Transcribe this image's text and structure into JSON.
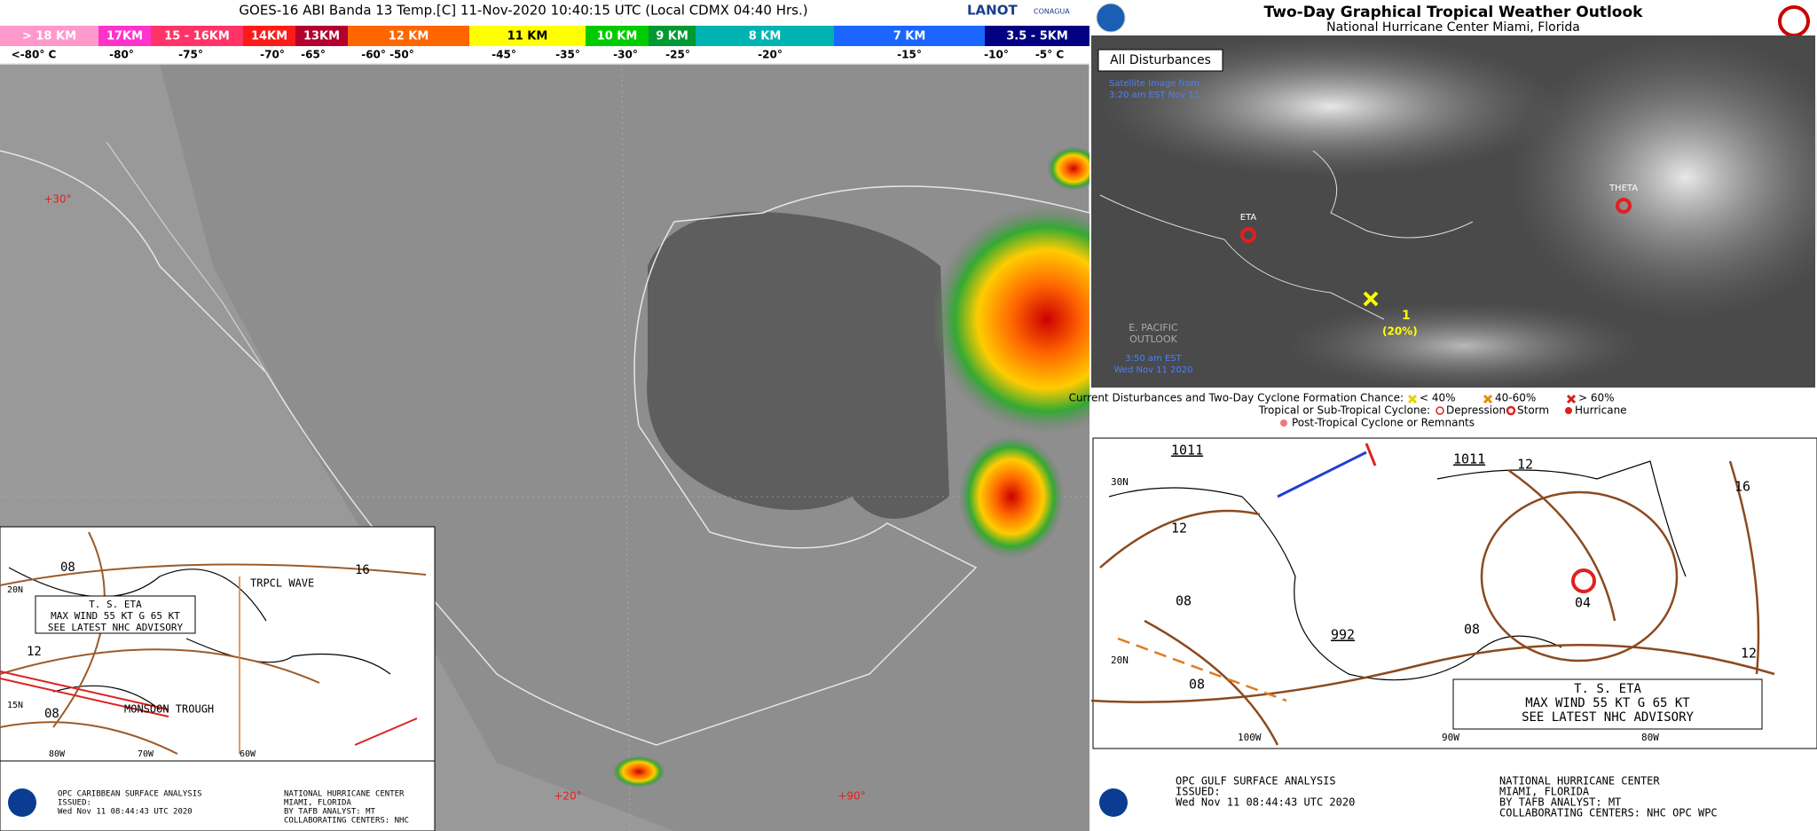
{
  "satellite": {
    "title": "GOES-16 ABI Banda 13 Temp.[C] 11-Nov-2020 10:40:15 UTC (Local CDMX  04:40 Hrs.)",
    "logo": "LANOT",
    "logo2": "CONAGUA",
    "heights": [
      "> 18 KM",
      "17KM",
      "15 - 16KM",
      "14KM",
      "13KM",
      "12 KM",
      "11 KM",
      "10 KM",
      "9 KM",
      "8 KM",
      "7 KM",
      "3.5 - 5KM"
    ],
    "temperatures": [
      "<-80° C",
      "-80°",
      "-75°",
      "-70°",
      "-65°",
      "-60°  -50°",
      "-45°",
      "-35°",
      "-30°",
      "-25°",
      "-20°",
      "-15°",
      "-10°",
      "-5° C"
    ],
    "map_labels": [
      "+30°",
      "+20°",
      "+90°"
    ]
  },
  "caribbean": {
    "storm": [
      "T. S. ETA",
      "MAX WIND 55 KT G 65 KT",
      "SEE LATEST NHC ADVISORY"
    ],
    "features": [
      "TRPCL WAVE",
      "MONSOON TROUGH"
    ],
    "isobars": [
      "08",
      "16",
      "12",
      "08"
    ],
    "axis": [
      "20N",
      "15N",
      "80W",
      "70W",
      "60W"
    ],
    "footer_left": [
      "OPC CARIBBEAN SURFACE ANALYSIS",
      "ISSUED:",
      "Wed Nov 11 08:44:43 UTC 2020"
    ],
    "footer_right": [
      "NATIONAL HURRICANE CENTER",
      "MIAMI, FLORIDA",
      "BY TAFB ANALYST: MT",
      "COLLABORATING CENTERS: NHC"
    ]
  },
  "outlook": {
    "title": "Two-Day Graphical Tropical Weather Outlook",
    "subtitle": "National Hurricane Center Miami, Florida",
    "tab": "All Disturbances",
    "image_note": [
      "Satellite Image from",
      "3:20 am EST Nov 11"
    ],
    "storms": [
      "ETA",
      "THETA"
    ],
    "disturbance": [
      "1",
      "(20%)"
    ],
    "pacific": [
      "E. PACIFIC",
      "OUTLOOK"
    ],
    "pacific_time": [
      "3:50 am EST",
      "Wed Nov 11 2020"
    ],
    "legend_title": "Current Disturbances and Two-Day Cyclone Formation Chance:",
    "chances": [
      "< 40%",
      "40-60%",
      "> 60%"
    ],
    "cyclone_title": "Tropical or Sub-Tropical Cyclone:",
    "cyclones": [
      "Depression",
      "Storm",
      "Hurricane"
    ],
    "post_tropical": "Post-Tropical Cyclone or Remnants"
  },
  "gulf": {
    "highs": [
      "1011",
      "1011"
    ],
    "isobars": [
      "12",
      "16",
      "12",
      "08",
      "08",
      "04",
      "08",
      "12"
    ],
    "low": "992",
    "axis": [
      "30N",
      "20N",
      "100W",
      "90W",
      "80W"
    ],
    "storm": [
      "T. S. ETA",
      "MAX WIND 55 KT G 65 KT",
      "SEE LATEST NHC ADVISORY"
    ],
    "footer_left": [
      "OPC GULF SURFACE ANALYSIS",
      "ISSUED:",
      "Wed Nov 11 08:44:43 UTC 2020"
    ],
    "footer_right": [
      "NATIONAL HURRICANE CENTER",
      "MIAMI, FLORIDA",
      "BY TAFB ANALYST: MT",
      "COLLABORATING CENTERS: NHC OPC WPC"
    ]
  }
}
